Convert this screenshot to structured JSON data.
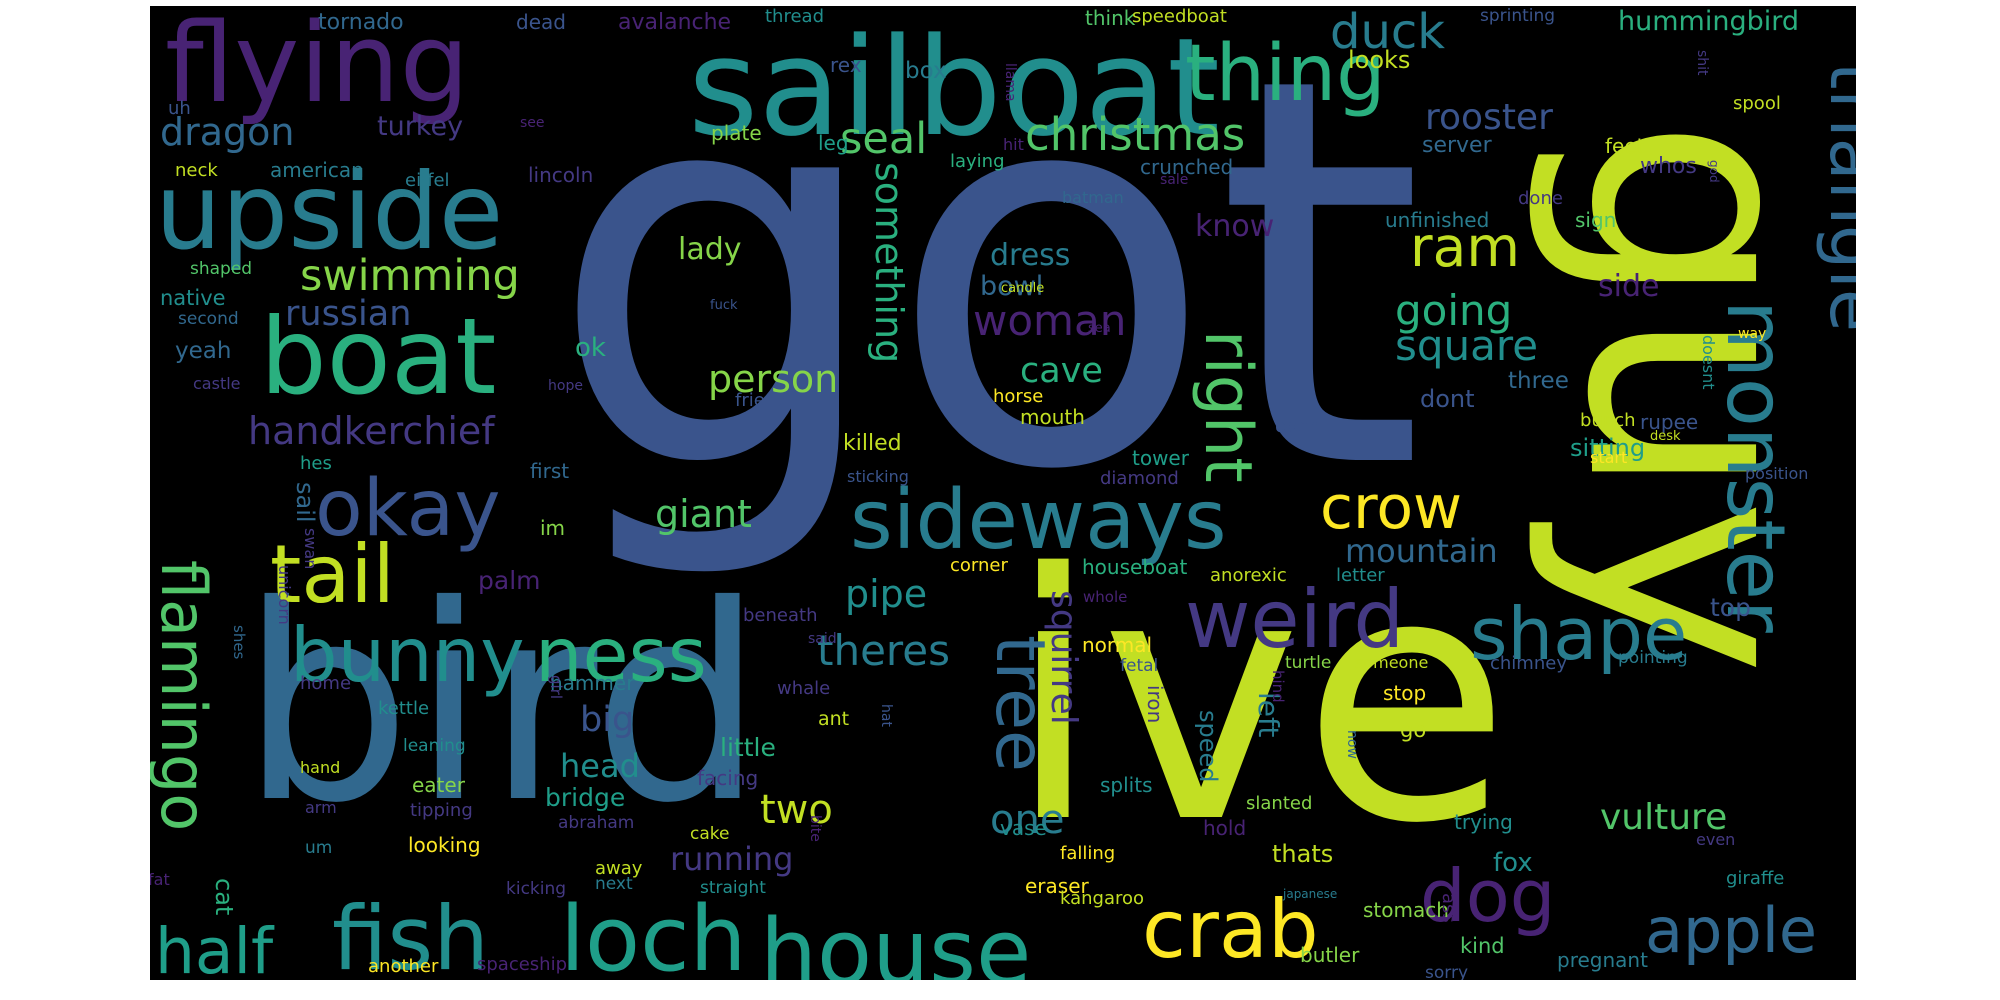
{
  "colors": {
    "background": "#000000",
    "page": "#ffffff",
    "palette": [
      "#fde725",
      "#c2df23",
      "#86d549",
      "#52c569",
      "#2ab07f",
      "#1f9e89",
      "#218e8d",
      "#287c8e",
      "#31688e",
      "#3a548c",
      "#443983",
      "#482374",
      "#440154"
    ]
  },
  "words": [
    {
      "text": "got",
      "color": 9
    },
    {
      "text": "ive",
      "color": 1
    },
    {
      "text": "bird",
      "color": 8
    },
    {
      "text": "guy",
      "color": 1
    },
    {
      "text": "sailboat",
      "color": 6
    },
    {
      "text": "flying",
      "color": 11
    },
    {
      "text": "upside",
      "color": 7
    },
    {
      "text": "boat",
      "color": 4
    },
    {
      "text": "sideways",
      "color": 7
    },
    {
      "text": "loch",
      "color": 5
    },
    {
      "text": "house",
      "color": 5
    },
    {
      "text": "fish",
      "color": 6
    },
    {
      "text": "thing",
      "color": 4
    },
    {
      "text": "monster",
      "color": 7
    },
    {
      "text": "triangle",
      "color": 8
    },
    {
      "text": "weird",
      "color": 10
    },
    {
      "text": "okay",
      "color": 9
    },
    {
      "text": "bunny",
      "color": 6
    },
    {
      "text": "ness",
      "color": 4
    },
    {
      "text": "tail",
      "color": 1
    },
    {
      "text": "crab",
      "color": 0
    },
    {
      "text": "flamingo",
      "color": 3
    },
    {
      "text": "half",
      "color": 5
    },
    {
      "text": "shape",
      "color": 7
    },
    {
      "text": "apple",
      "color": 8
    },
    {
      "text": "dog",
      "color": 11
    },
    {
      "text": "right",
      "color": 3
    },
    {
      "text": "tree",
      "color": 8
    },
    {
      "text": "crow",
      "color": 0
    },
    {
      "text": "ram",
      "color": 1
    },
    {
      "text": "duck",
      "color": 7
    },
    {
      "text": "christmas",
      "color": 3
    },
    {
      "text": "swimming",
      "color": 2
    },
    {
      "text": "dragon",
      "color": 8
    },
    {
      "text": "seal",
      "color": 3
    },
    {
      "text": "rooster",
      "color": 9
    },
    {
      "text": "handkerchief",
      "color": 10
    },
    {
      "text": "square",
      "color": 6
    },
    {
      "text": "going",
      "color": 4
    },
    {
      "text": "something",
      "color": 4
    },
    {
      "text": "squirrel",
      "color": 10
    },
    {
      "text": "theres",
      "color": 7
    },
    {
      "text": "person",
      "color": 2
    },
    {
      "text": "woman",
      "color": 11
    },
    {
      "text": "russian",
      "color": 9
    },
    {
      "text": "cave",
      "color": 4
    },
    {
      "text": "giant",
      "color": 3
    },
    {
      "text": "pipe",
      "color": 6
    },
    {
      "text": "mountain",
      "color": 8
    },
    {
      "text": "one",
      "color": 7
    },
    {
      "text": "vulture",
      "color": 3
    },
    {
      "text": "two",
      "color": 1
    },
    {
      "text": "big",
      "color": 9
    },
    {
      "text": "head",
      "color": 6
    },
    {
      "text": "running",
      "color": 10
    },
    {
      "text": "lady",
      "color": 2
    },
    {
      "text": "dress",
      "color": 7
    },
    {
      "text": "know",
      "color": 11
    },
    {
      "text": "bowl",
      "color": 8
    },
    {
      "text": "turkey",
      "color": 10
    },
    {
      "text": "side",
      "color": 11
    },
    {
      "text": "hummingbird",
      "color": 4
    },
    {
      "text": "looks",
      "color": 1
    },
    {
      "text": "cat",
      "color": 4
    },
    {
      "text": "left",
      "color": 7
    },
    {
      "text": "speed",
      "color": 7
    },
    {
      "text": "fox",
      "color": 6
    },
    {
      "text": "top",
      "color": 9
    },
    {
      "text": "sitting",
      "color": 5
    },
    {
      "text": "killed",
      "color": 1
    },
    {
      "text": "palm",
      "color": 11
    },
    {
      "text": "bridge",
      "color": 5
    },
    {
      "text": "little",
      "color": 4
    },
    {
      "text": "thats",
      "color": 1
    },
    {
      "text": "houseboat",
      "color": 4
    },
    {
      "text": "kind",
      "color": 3
    },
    {
      "text": "dont",
      "color": 9
    },
    {
      "text": "three",
      "color": 8
    },
    {
      "text": "yeah",
      "color": 8
    },
    {
      "text": "ok",
      "color": 4
    },
    {
      "text": "native",
      "color": 6
    },
    {
      "text": "whos",
      "color": 10
    },
    {
      "text": "mouth",
      "color": 1
    },
    {
      "text": "horse",
      "color": 0
    },
    {
      "text": "tower",
      "color": 5
    },
    {
      "text": "server",
      "color": 8
    },
    {
      "text": "feet",
      "color": 1
    },
    {
      "text": "bunch",
      "color": 1
    },
    {
      "text": "rupee",
      "color": 9
    },
    {
      "text": "sign",
      "color": 3
    },
    {
      "text": "unfinished",
      "color": 7
    },
    {
      "text": "done",
      "color": 10
    },
    {
      "text": "crunched",
      "color": 8
    },
    {
      "text": "laying",
      "color": 4
    },
    {
      "text": "leg",
      "color": 5
    },
    {
      "text": "plate",
      "color": 2
    },
    {
      "text": "american",
      "color": 7
    },
    {
      "text": "eiffel",
      "color": 7
    },
    {
      "text": "lincoln",
      "color": 10
    },
    {
      "text": "neck",
      "color": 1
    },
    {
      "text": "shaped",
      "color": 3
    },
    {
      "text": "second",
      "color": 8
    },
    {
      "text": "castle",
      "color": 10
    },
    {
      "text": "hes",
      "color": 5
    },
    {
      "text": "sail",
      "color": 8
    },
    {
      "text": "swan",
      "color": 10
    },
    {
      "text": "unicorn",
      "color": 10
    },
    {
      "text": "im",
      "color": 2
    },
    {
      "text": "first",
      "color": 8
    },
    {
      "text": "friend",
      "color": 9
    },
    {
      "text": "hope",
      "color": 10
    },
    {
      "text": "fuck",
      "color": 9
    },
    {
      "text": "candle",
      "color": 1
    },
    {
      "text": "sea",
      "color": 11
    },
    {
      "text": "batman",
      "color": 8
    },
    {
      "text": "sale",
      "color": 11
    },
    {
      "text": "god",
      "color": 10
    },
    {
      "text": "hit",
      "color": 11
    },
    {
      "text": "see",
      "color": 11
    },
    {
      "text": "box",
      "color": 7
    },
    {
      "text": "llama",
      "color": 11
    },
    {
      "text": "rex",
      "color": 9
    },
    {
      "text": "tornado",
      "color": 8
    },
    {
      "text": "dead",
      "color": 9
    },
    {
      "text": "avalanche",
      "color": 11
    },
    {
      "text": "thread",
      "color": 6
    },
    {
      "text": "think",
      "color": 3
    },
    {
      "text": "speedboat",
      "color": 1
    },
    {
      "text": "sprinting",
      "color": 9
    },
    {
      "text": "uh",
      "color": 9
    },
    {
      "text": "shit",
      "color": 10
    },
    {
      "text": "spool",
      "color": 1
    },
    {
      "text": "way",
      "color": 0
    },
    {
      "text": "doesnt",
      "color": 6
    },
    {
      "text": "cool",
      "color": 1
    },
    {
      "text": "position",
      "color": 9
    },
    {
      "text": "start",
      "color": 0
    },
    {
      "text": "desk",
      "color": 1
    },
    {
      "text": "open",
      "color": 9
    },
    {
      "text": "diamond",
      "color": 10
    },
    {
      "text": "sticking",
      "color": 9
    },
    {
      "text": "corner",
      "color": 0
    },
    {
      "text": "whole",
      "color": 11
    },
    {
      "text": "anorexic",
      "color": 1
    },
    {
      "text": "letter",
      "color": 6
    },
    {
      "text": "normal",
      "color": 0
    },
    {
      "text": "fetal",
      "color": 9
    },
    {
      "text": "turtle",
      "color": 2
    },
    {
      "text": "someone",
      "color": 1
    },
    {
      "text": "chimney",
      "color": 9
    },
    {
      "text": "pointing",
      "color": 7
    },
    {
      "text": "stop",
      "color": 0
    },
    {
      "text": "go",
      "color": 1
    },
    {
      "text": "now",
      "color": 8
    },
    {
      "text": "hind",
      "color": 11
    },
    {
      "text": "iron",
      "color": 10
    },
    {
      "text": "splits",
      "color": 6
    },
    {
      "text": "slanted",
      "color": 2
    },
    {
      "text": "trying",
      "color": 6
    },
    {
      "text": "even",
      "color": 10
    },
    {
      "text": "giraffe",
      "color": 6
    },
    {
      "text": "falling",
      "color": 0
    },
    {
      "text": "vase",
      "color": 6
    },
    {
      "text": "hold",
      "color": 11
    },
    {
      "text": "eraser",
      "color": 0
    },
    {
      "text": "kangaroo",
      "color": 1
    },
    {
      "text": "japanese",
      "color": 7
    },
    {
      "text": "stomach",
      "color": 2
    },
    {
      "text": "ass",
      "color": 11
    },
    {
      "text": "butler",
      "color": 2
    },
    {
      "text": "pregnant",
      "color": 7
    },
    {
      "text": "sorry",
      "color": 9
    },
    {
      "text": "cake",
      "color": 1
    },
    {
      "text": "bite",
      "color": 11
    },
    {
      "text": "away",
      "color": 1
    },
    {
      "text": "next",
      "color": 7
    },
    {
      "text": "straight",
      "color": 6
    },
    {
      "text": "kicking",
      "color": 10
    },
    {
      "text": "spaceship",
      "color": 11
    },
    {
      "text": "another",
      "color": 0
    },
    {
      "text": "looking",
      "color": 0
    },
    {
      "text": "abraham",
      "color": 10
    },
    {
      "text": "tipping",
      "color": 10
    },
    {
      "text": "eater",
      "color": 2
    },
    {
      "text": "arm",
      "color": 10
    },
    {
      "text": "hand",
      "color": 1
    },
    {
      "text": "leaning",
      "color": 6
    },
    {
      "text": "kettle",
      "color": 6
    },
    {
      "text": "home",
      "color": 10
    },
    {
      "text": "um",
      "color": 7
    },
    {
      "text": "fat",
      "color": 11
    },
    {
      "text": "shes",
      "color": 8
    },
    {
      "text": "hammer",
      "color": 7
    },
    {
      "text": "girl",
      "color": 10
    },
    {
      "text": "whale",
      "color": 10
    },
    {
      "text": "ant",
      "color": 1
    },
    {
      "text": "hat",
      "color": 9
    },
    {
      "text": "facing",
      "color": 10
    },
    {
      "text": "beneath",
      "color": 10
    },
    {
      "text": "said",
      "color": 10
    }
  ]
}
